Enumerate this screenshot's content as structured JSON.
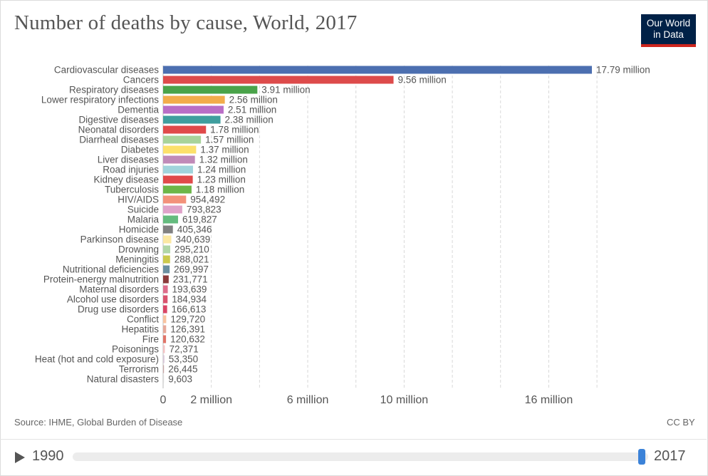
{
  "header": {
    "title": "Number of deaths by cause, World, 2017",
    "logo_line1": "Our World",
    "logo_line2": "in Data"
  },
  "footer": {
    "source": "Source: IHME, Global Burden of Disease",
    "license": "CC BY"
  },
  "timeline": {
    "start_year": "1990",
    "end_year": "2017",
    "selected_fraction": 1.0
  },
  "chart_data": {
    "type": "bar",
    "orientation": "horizontal",
    "title": "Number of deaths by cause, World, 2017",
    "xlim": [
      0,
      18000000
    ],
    "x_ticks": [
      {
        "value": 0,
        "label": "0"
      },
      {
        "value": 2000000,
        "label": "2 million"
      },
      {
        "value": 6000000,
        "label": "6 million"
      },
      {
        "value": 10000000,
        "label": "10 million"
      },
      {
        "value": 16000000,
        "label": "16 million"
      }
    ],
    "gridlines": [
      2000000,
      4000000,
      6000000,
      8000000,
      10000000,
      12000000,
      14000000,
      16000000,
      18000000
    ],
    "grid": true,
    "categories": [
      "Cardiovascular diseases",
      "Cancers",
      "Respiratory diseases",
      "Lower respiratory infections",
      "Dementia",
      "Digestive diseases",
      "Neonatal disorders",
      "Diarrheal diseases",
      "Diabetes",
      "Liver diseases",
      "Road injuries",
      "Kidney disease",
      "Tuberculosis",
      "HIV/AIDS",
      "Suicide",
      "Malaria",
      "Homicide",
      "Parkinson disease",
      "Drowning",
      "Meningitis",
      "Nutritional deficiencies",
      "Protein-energy malnutrition",
      "Maternal disorders",
      "Alcohol use disorders",
      "Drug use disorders",
      "Conflict",
      "Hepatitis",
      "Fire",
      "Poisonings",
      "Heat (hot and cold exposure)",
      "Terrorism",
      "Natural disasters"
    ],
    "values": [
      17790000,
      9560000,
      3910000,
      2560000,
      2510000,
      2380000,
      1780000,
      1570000,
      1370000,
      1320000,
      1240000,
      1230000,
      1180000,
      954492,
      793823,
      619827,
      405346,
      340639,
      295210,
      288021,
      269997,
      231771,
      193639,
      184934,
      166613,
      129720,
      126391,
      120632,
      72371,
      53350,
      26445,
      9603
    ],
    "value_labels": [
      "17.79 million",
      "9.56 million",
      "3.91 million",
      "2.56 million",
      "2.51 million",
      "2.38 million",
      "1.78 million",
      "1.57 million",
      "1.37 million",
      "1.32 million",
      "1.24 million",
      "1.23 million",
      "1.18 million",
      "954,492",
      "793,823",
      "619,827",
      "405,346",
      "340,639",
      "295,210",
      "288,021",
      "269,997",
      "231,771",
      "193,639",
      "184,934",
      "166,613",
      "129,720",
      "126,391",
      "120,632",
      "72,371",
      "53,350",
      "26,445",
      "9,603"
    ],
    "colors": [
      "#4c6fb0",
      "#dd4b4b",
      "#4aa34a",
      "#f2ac4b",
      "#b96ec6",
      "#3f9e9e",
      "#e04a4a",
      "#a8d39a",
      "#fce06a",
      "#c08ab8",
      "#a0d4dc",
      "#e04a4a",
      "#6cb648",
      "#f3917a",
      "#dfa2c9",
      "#64bb7e",
      "#808080",
      "#fbe8a2",
      "#b0d6a6",
      "#cbc94c",
      "#6a8fa0",
      "#8b3a3a",
      "#de6c8a",
      "#d9536e",
      "#d94565",
      "#f8c3a0",
      "#e6a99a",
      "#e07468",
      "#f4c2c4",
      "#d8c7d8",
      "#c7a5a5",
      "#d9d9d9"
    ]
  }
}
